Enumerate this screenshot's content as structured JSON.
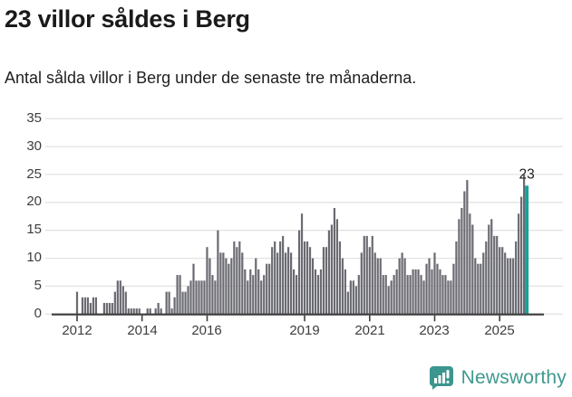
{
  "header": {
    "title": "23 villor såldes i Berg",
    "subtitle": "Antal sålda villor i Berg under de senaste tre månaderna."
  },
  "chart_data": {
    "type": "bar",
    "title": "23 villor såldes i Berg",
    "subtitle": "Antal sålda villor i Berg under de senaste tre månaderna.",
    "xlabel": "",
    "ylabel": "",
    "ylim": [
      0,
      35
    ],
    "grid": "horizontal",
    "start_month": "2012-01",
    "frequency": "monthly",
    "y_ticks": [
      "0",
      "5",
      "10",
      "15",
      "20",
      "25",
      "30",
      "35"
    ],
    "y_tick_values": [
      0,
      5,
      10,
      15,
      20,
      25,
      30,
      35
    ],
    "x_ticks": [
      {
        "label": "2012",
        "month_index": 0
      },
      {
        "label": "2014",
        "month_index": 24
      },
      {
        "label": "2016",
        "month_index": 48
      },
      {
        "label": "2019",
        "month_index": 84
      },
      {
        "label": "2021",
        "month_index": 108
      },
      {
        "label": "2023",
        "month_index": 132
      },
      {
        "label": "2025",
        "month_index": 156
      }
    ],
    "values": [
      4,
      0,
      3,
      3,
      3,
      2,
      3,
      3,
      0,
      0,
      2,
      2,
      2,
      2,
      4,
      6,
      6,
      5,
      4,
      1,
      1,
      1,
      1,
      1,
      0,
      0,
      1,
      1,
      0,
      1,
      2,
      1,
      0,
      4,
      4,
      1,
      3,
      7,
      7,
      4,
      4,
      5,
      6,
      9,
      6,
      6,
      6,
      6,
      12,
      10,
      7,
      6,
      15,
      11,
      11,
      10,
      9,
      10,
      13,
      12,
      13,
      11,
      8,
      6,
      8,
      7,
      10,
      8,
      6,
      7,
      9,
      9,
      12,
      13,
      11,
      13,
      14,
      11,
      12,
      11,
      8,
      7,
      15,
      18,
      13,
      13,
      12,
      10,
      8,
      7,
      8,
      12,
      12,
      15,
      16,
      19,
      17,
      13,
      10,
      8,
      4,
      6,
      6,
      5,
      7,
      11,
      14,
      14,
      12,
      14,
      11,
      10,
      10,
      7,
      7,
      5,
      6,
      7,
      8,
      10,
      11,
      10,
      7,
      7,
      8,
      8,
      8,
      7,
      6,
      9,
      10,
      8,
      11,
      9,
      8,
      7,
      7,
      6,
      6,
      9,
      13,
      17,
      19,
      22,
      24,
      18,
      16,
      10,
      9,
      9,
      11,
      13,
      16,
      17,
      14,
      14,
      12,
      12,
      11,
      10,
      10,
      10,
      13,
      18,
      21,
      25,
      23
    ],
    "highlight_index": 166,
    "highlight_value_label": "23",
    "bar_color": "#6a6a72",
    "highlight_color": "#16a29b",
    "gridline_color": "#e3e3e3",
    "axis_color": "#3f3f3f",
    "label_color": "#2d2d2d"
  },
  "footer": {
    "brand": "Newsworthy",
    "brand_color": "#3e998f"
  }
}
